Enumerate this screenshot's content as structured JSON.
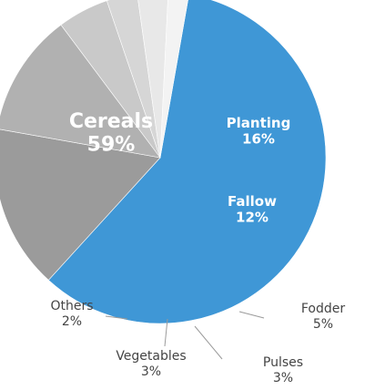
{
  "chart_data": {
    "type": "pie",
    "categories": [
      "Cereals",
      "Planting",
      "Fallow",
      "Fodder",
      "Pulses",
      "Vegetables",
      "Others"
    ],
    "values": [
      59,
      16,
      12,
      5,
      3,
      3,
      2
    ],
    "labels": [
      "59%",
      "16%",
      "12%",
      "5%",
      "3%",
      "3%",
      "2%"
    ],
    "colors": [
      "#3f97d6",
      "#9b9b9b",
      "#b1b1b1",
      "#c9c9c9",
      "#d6d6d6",
      "#e8e8e8",
      "#f3f3f3"
    ],
    "title": "",
    "legend": "none (labels on slices)"
  }
}
